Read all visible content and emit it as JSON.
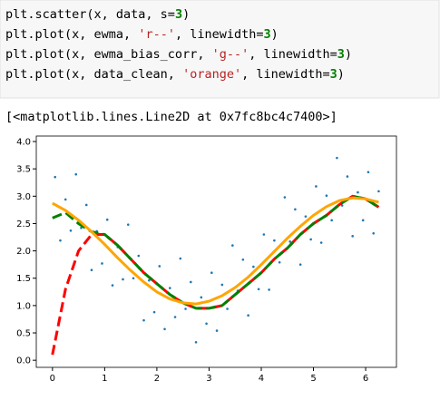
{
  "code": {
    "lines": [
      "plt.scatter(x, data, s=3)",
      "plt.plot(x, ewma, 'r--', linewidth=3)",
      "plt.plot(x, ewma_bias_corr, 'g--', linewidth=3)",
      "plt.plot(x, data_clean, 'orange', linewidth=3)"
    ]
  },
  "output": {
    "text": "[<matplotlib.lines.Line2D at 0x7fc8bc4c7400>]"
  },
  "chart_data": {
    "type": "scatter",
    "xlim": [
      -0.31,
      6.59
    ],
    "ylim": [
      -0.13,
      4.1
    ],
    "xticks": [
      0,
      1,
      2,
      3,
      4,
      5,
      6
    ],
    "yticks": [
      {
        "value": 0,
        "label": "0.0"
      },
      0.5,
      {
        "value": 1,
        "label": "1.0"
      },
      1.5,
      {
        "value": 2,
        "label": "2.0"
      },
      2.5,
      {
        "value": 3,
        "label": "3.0"
      },
      3.5,
      {
        "value": 4,
        "label": "4.0"
      }
    ],
    "series": [
      {
        "type": "scatter",
        "color": "#1f77b4",
        "x": [
          0.05,
          0.15,
          0.25,
          0.35,
          0.45,
          0.55,
          0.65,
          0.75,
          0.85,
          0.95,
          1.05,
          1.15,
          1.25,
          1.35,
          1.45,
          1.55,
          1.65,
          1.75,
          1.85,
          1.95,
          2.05,
          2.15,
          2.25,
          2.35,
          2.45,
          2.55,
          2.65,
          2.75,
          2.85,
          2.95,
          3.05,
          3.15,
          3.25,
          3.35,
          3.45,
          3.55,
          3.65,
          3.75,
          3.85,
          3.95,
          4.05,
          4.15,
          4.25,
          4.35,
          4.45,
          4.55,
          4.65,
          4.75,
          4.85,
          4.95,
          5.05,
          5.15,
          5.25,
          5.35,
          5.45,
          5.55,
          5.65,
          5.75,
          5.85,
          5.95,
          6.05,
          6.15,
          6.25
        ],
        "values": [
          3.35,
          2.19,
          2.94,
          2.37,
          3.4,
          2.42,
          2.84,
          1.65,
          2.36,
          1.77,
          2.57,
          1.37,
          2.07,
          1.48,
          2.48,
          1.5,
          1.91,
          0.73,
          1.46,
          0.88,
          1.72,
          0.57,
          1.32,
          0.79,
          1.86,
          0.94,
          1.43,
          0.33,
          1.15,
          0.67,
          1.6,
          0.54,
          1.38,
          0.94,
          2.1,
          1.27,
          1.84,
          0.82,
          1.71,
          1.3,
          2.3,
          1.29,
          2.19,
          1.79,
          2.98,
          2.17,
          2.76,
          1.75,
          2.63,
          2.21,
          3.18,
          2.15,
          3.01,
          2.56,
          3.7,
          2.83,
          3.36,
          2.27,
          3.07,
          2.56,
          3.44,
          2.32,
          3.09
        ]
      },
      {
        "type": "line",
        "color": "#ff0000",
        "dash": true,
        "x": [
          0,
          0.25,
          0.5,
          0.75,
          1,
          1.25,
          1.5,
          1.75,
          2,
          2.25,
          2.5,
          2.75,
          3,
          3.25,
          3.5,
          3.75,
          4,
          4.25,
          4.5,
          4.75,
          5,
          5.25,
          5.5,
          5.75,
          6,
          6.25
        ],
        "values": [
          0.1,
          1.3,
          2.0,
          2.3,
          2.3,
          2.1,
          1.85,
          1.6,
          1.4,
          1.2,
          1.05,
          0.95,
          0.95,
          1.0,
          1.2,
          1.4,
          1.6,
          1.85,
          2.05,
          2.3,
          2.5,
          2.65,
          2.85,
          3.0,
          2.95,
          2.8
        ]
      },
      {
        "type": "line",
        "color": "#008000",
        "dash": true,
        "x": [
          0,
          0.25,
          0.5,
          0.75,
          1,
          1.25,
          1.5,
          1.75,
          2,
          2.25,
          2.5,
          2.75,
          3,
          3.25,
          3.5,
          3.75,
          4,
          4.25,
          4.5,
          4.75,
          5,
          5.25,
          5.5,
          5.75,
          6,
          6.25
        ],
        "values": [
          2.6,
          2.7,
          2.5,
          2.35,
          2.3,
          2.1,
          1.85,
          1.6,
          1.4,
          1.2,
          1.05,
          0.95,
          0.95,
          1.0,
          1.2,
          1.4,
          1.6,
          1.85,
          2.05,
          2.3,
          2.5,
          2.65,
          2.85,
          3.0,
          2.95,
          2.8
        ]
      },
      {
        "type": "line",
        "color": "#ffa500",
        "dash": false,
        "x": [
          0,
          0.25,
          0.5,
          0.75,
          1,
          1.25,
          1.5,
          1.75,
          2,
          2.25,
          2.5,
          2.75,
          3,
          3.25,
          3.5,
          3.75,
          4,
          4.25,
          4.5,
          4.75,
          5,
          5.25,
          5.5,
          5.75,
          6,
          6.25
        ],
        "values": [
          2.87,
          2.74,
          2.56,
          2.35,
          2.12,
          1.87,
          1.64,
          1.43,
          1.25,
          1.12,
          1.05,
          1.03,
          1.08,
          1.18,
          1.33,
          1.52,
          1.75,
          1.99,
          2.23,
          2.45,
          2.65,
          2.81,
          2.92,
          2.97,
          2.95,
          2.89
        ]
      }
    ]
  }
}
